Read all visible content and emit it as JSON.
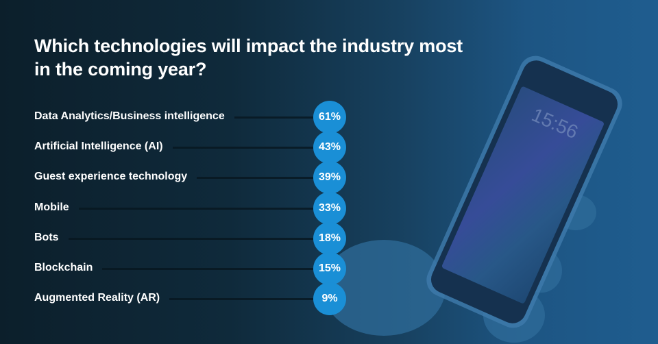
{
  "chart_data": {
    "type": "bar",
    "title": "Which technologies will impact the industry most in the coming year?",
    "title_lines": [
      "Which technologies will impact the industry most",
      "in the coming year?"
    ],
    "categories": [
      "Data Analytics/Business intelligence",
      "Artificial Intelligence (AI)",
      "Guest experience technology",
      "Mobile",
      "Bots",
      "Blockchain",
      "Augmented Reality (AR)"
    ],
    "values": [
      61,
      43,
      39,
      33,
      18,
      15,
      9
    ],
    "value_labels": [
      "61%",
      "43%",
      "39%",
      "33%",
      "18%",
      "15%",
      "9%"
    ],
    "unit": "%"
  },
  "phone": {
    "clock": "15:56"
  },
  "colors": {
    "bubble": "#1a8fd6",
    "background": "#0f2a3b"
  }
}
